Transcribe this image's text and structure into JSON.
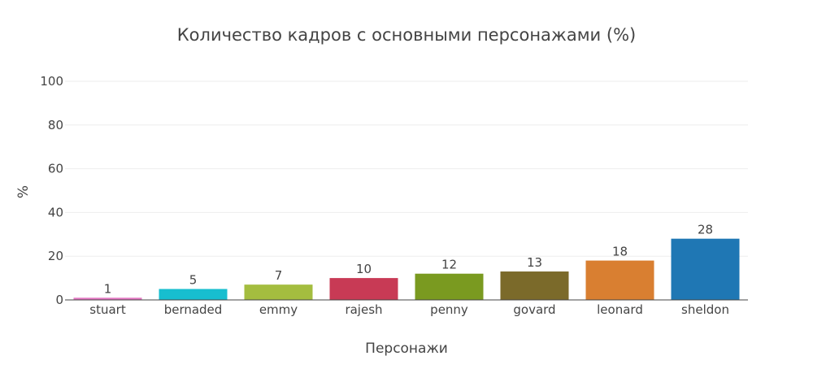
{
  "chart_data": {
    "type": "bar",
    "title": "Количество кадров с основными персонажами (%)",
    "xlabel": "Персонажи",
    "ylabel": "%",
    "categories": [
      "stuart",
      "bernaded",
      "emmy",
      "rajesh",
      "penny",
      "govard",
      "leonard",
      "sheldon"
    ],
    "values": [
      1,
      5,
      7,
      10,
      12,
      13,
      18,
      28
    ],
    "data_labels": [
      "1",
      "5",
      "7",
      "10",
      "12",
      "13",
      "18",
      "28"
    ],
    "colors": [
      "#e377c2",
      "#17becf",
      "#a4bd3f",
      "#c83a55",
      "#7a9a20",
      "#7b6a2a",
      "#d97f31",
      "#1f77b4"
    ],
    "ylim": [
      0,
      100
    ],
    "yticks": [
      0,
      20,
      40,
      60,
      80,
      100
    ],
    "ytick_labels": [
      "0",
      "20",
      "40",
      "60",
      "80",
      "100"
    ],
    "grid": true,
    "legend": "none"
  }
}
